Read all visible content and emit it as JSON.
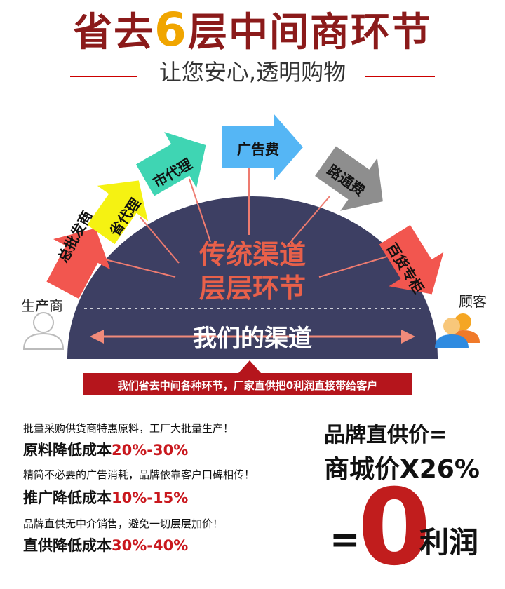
{
  "header": {
    "title_part1": "省去",
    "title_number": "6",
    "title_part2": "层中间商环节",
    "subtitle": "让您安心,透明购物"
  },
  "diagram": {
    "arrows": [
      {
        "label": "总批发商",
        "color": "#f2564f"
      },
      {
        "label": "省代理",
        "color": "#f5f212"
      },
      {
        "label": "市代理",
        "color": "#3fd5b3"
      },
      {
        "label": "广告费",
        "color": "#55b6f5"
      },
      {
        "label": "路通费",
        "color": "#8e8e8e"
      },
      {
        "label": "百货专柜",
        "color": "#f2564f"
      }
    ],
    "center_line1": "传统渠道",
    "center_line2": "层层环节",
    "our_channel": "我们的渠道",
    "producer_label": "生产商",
    "customer_label": "顾客",
    "banner": "我们省去中间各种环节，厂家直供把0利润直接带给客户",
    "dome_color": "#3d3f63",
    "banner_color": "#b5151c"
  },
  "savings": {
    "items": [
      {
        "desc": "批量采购供货商特惠原料，工厂大批量生产！",
        "label": "原料降低成本",
        "pct": "20%-30%"
      },
      {
        "desc": "精简不必要的广告消耗，品牌依靠客户口碑相传！",
        "label": "推广降低成本",
        "pct": "10%-15%"
      },
      {
        "desc": "品牌直供无中介销售，避免一切层层加价！",
        "label": "直供降低成本",
        "pct": "30%-40%"
      }
    ]
  },
  "formula": {
    "line1": "品牌直供价=",
    "line2": "商城价X26%",
    "equals": "=",
    "zero": "0",
    "profit": "利润"
  }
}
